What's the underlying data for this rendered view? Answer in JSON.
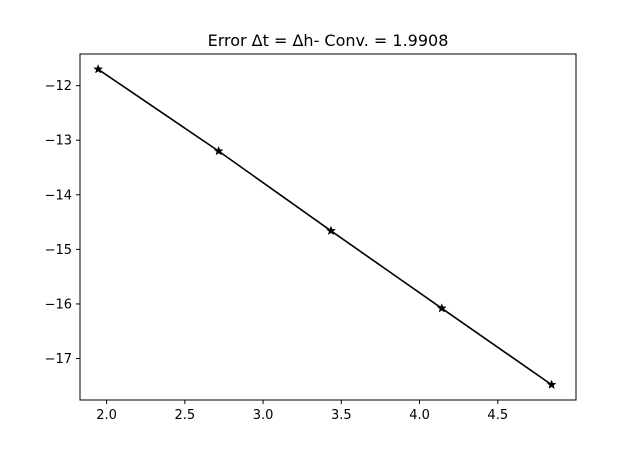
{
  "chart_data": {
    "type": "line",
    "title": "Error Δt = Δh- Conv. = 1.9908",
    "xlabel": "",
    "ylabel": "",
    "xlim": [
      1.83,
      5.0
    ],
    "ylim": [
      -17.76,
      -11.42
    ],
    "x_ticks": [
      2.0,
      2.5,
      3.0,
      3.5,
      4.0,
      4.5
    ],
    "x_tick_labels": [
      "2.0",
      "2.5",
      "3.0",
      "3.5",
      "4.0",
      "4.5"
    ],
    "y_ticks": [
      -12,
      -13,
      -14,
      -15,
      -16,
      -17
    ],
    "y_tick_labels": [
      "−12",
      "−13",
      "−14",
      "−15",
      "−16",
      "−17"
    ],
    "grid": false,
    "series": [
      {
        "x": [
          1.946,
          2.716,
          3.434,
          4.142,
          4.844
        ],
        "y": [
          -11.7,
          -13.2,
          -14.66,
          -16.08,
          -17.48
        ],
        "color": "#000000",
        "marker": "star"
      }
    ]
  }
}
